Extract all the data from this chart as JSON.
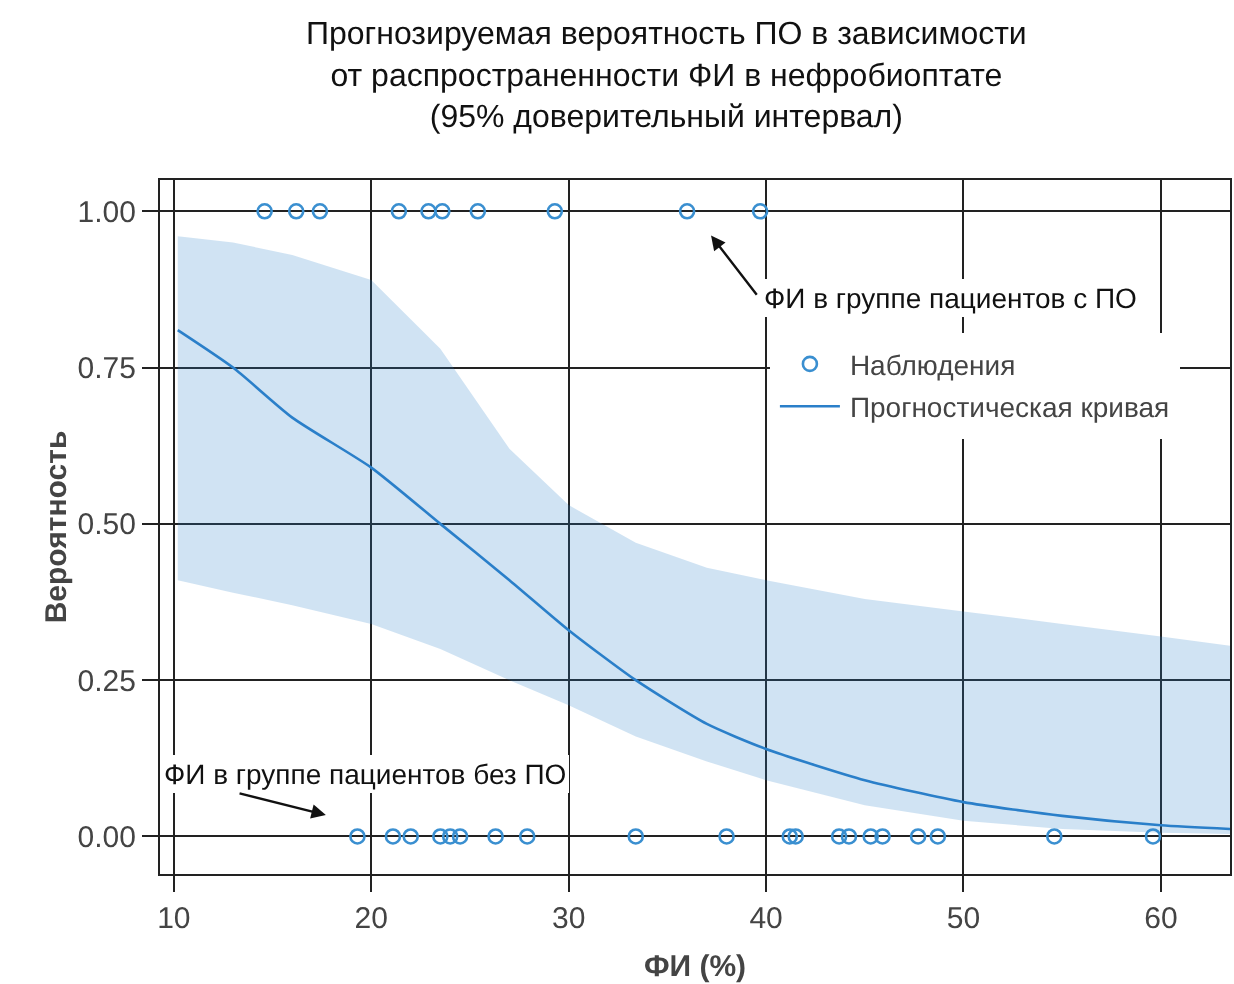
{
  "chart_data": {
    "type": "scatter",
    "title": "Прогнозируемая вероятность ПО в зависимости от распространенности ФИ в нефробиоптате (95% доверительный интервал)",
    "xlabel": "ФИ (%)",
    "ylabel": "Вероятность",
    "xlim": [
      9.3,
      63.5
    ],
    "xticks": [
      10,
      20,
      30,
      40,
      50,
      60
    ],
    "ylim": [
      -0.06,
      1.05
    ],
    "yticks": [
      {
        "value": 0,
        "label": "0.00"
      },
      {
        "value": 0.25,
        "label": "0.25"
      },
      {
        "value": 0.5,
        "label": "0.50"
      },
      {
        "value": 0.75,
        "label": "0.75"
      },
      {
        "value": 1,
        "label": "1.00"
      }
    ],
    "grid": true,
    "legend": "right",
    "series": [
      {
        "name": "Наблюдения",
        "marker": "circle",
        "color": "#3a8fd0",
        "x": [
          14.6,
          16.2,
          17.4,
          21.4,
          22.9,
          23.6,
          25.4,
          29.3,
          36.0,
          39.7,
          19.3,
          21.1,
          22.0,
          23.5,
          24.0,
          24.5,
          26.3,
          27.9,
          33.4,
          38.0,
          41.2,
          41.5,
          43.7,
          44.2,
          45.3,
          45.9,
          47.7,
          48.7,
          54.6,
          59.6
        ],
        "values": [
          1,
          1,
          1,
          1,
          1,
          1,
          1,
          1,
          1,
          1,
          0,
          0,
          0,
          0,
          0,
          0,
          0,
          0,
          0,
          0,
          0,
          0,
          0,
          0,
          0,
          0,
          0,
          0,
          0,
          0
        ]
      },
      {
        "name": "Прогностическая кривая",
        "type": "line",
        "marker": "none",
        "line_style": "solid",
        "color": "#2a7fc9",
        "x": [
          10.2,
          13,
          16,
          20,
          23.5,
          27,
          30,
          33.4,
          37,
          40,
          45,
          50,
          55,
          60,
          63.5
        ],
        "values": [
          0.81,
          0.75,
          0.67,
          0.59,
          0.5,
          0.41,
          0.33,
          0.25,
          0.18,
          0.14,
          0.09,
          0.055,
          0.033,
          0.018,
          0.012
        ],
        "lower": [
          0.41,
          0.39,
          0.37,
          0.34,
          0.3,
          0.25,
          0.21,
          0.16,
          0.12,
          0.09,
          0.05,
          0.025,
          0.012,
          0.006,
          0.004
        ],
        "upper": [
          0.96,
          0.95,
          0.93,
          0.89,
          0.78,
          0.62,
          0.53,
          0.47,
          0.43,
          0.41,
          0.38,
          0.36,
          0.34,
          0.32,
          0.305
        ]
      }
    ],
    "annotations": [
      "ФИ в группе пациентов с ПО",
      "ФИ в группе пациентов без ПО"
    ]
  }
}
